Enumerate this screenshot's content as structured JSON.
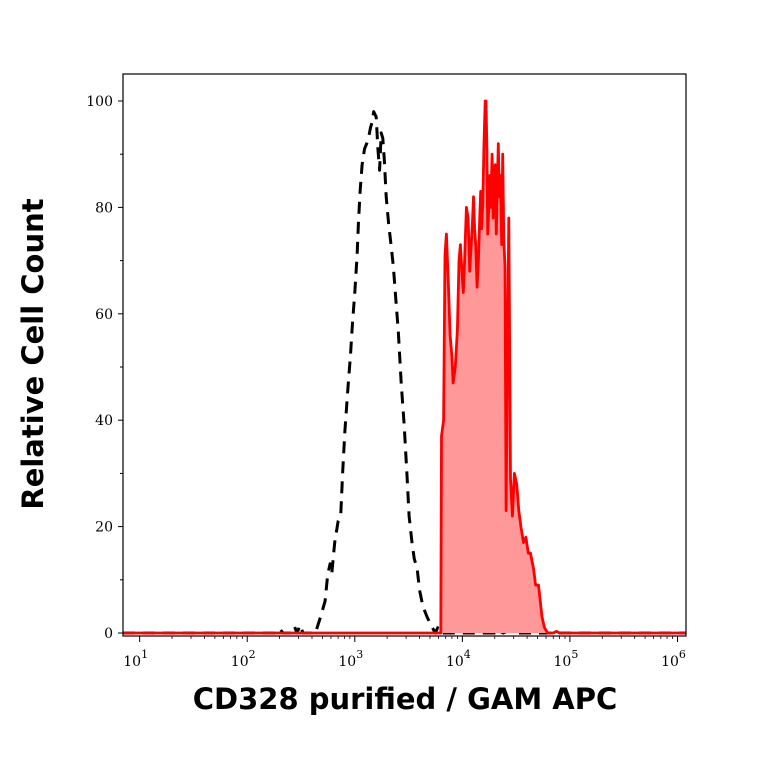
{
  "chart_data": {
    "type": "area",
    "xlabel": "CD328 purified / GAM APC",
    "ylabel": "Relative Cell Count",
    "x_scale": "log",
    "xlim": [
      7,
      1200000.0
    ],
    "ylim": [
      0,
      100
    ],
    "x_ticks": [
      {
        "value": 10,
        "base": "10",
        "exp": "1"
      },
      {
        "value": 100,
        "base": "10",
        "exp": "2"
      },
      {
        "value": 1000,
        "base": "10",
        "exp": "3"
      },
      {
        "value": 10000,
        "base": "10",
        "exp": "4"
      },
      {
        "value": 100000,
        "base": "10",
        "exp": "5"
      },
      {
        "value": 1000000,
        "base": "10",
        "exp": "6"
      }
    ],
    "y_ticks": [
      0,
      20,
      40,
      60,
      80,
      100
    ],
    "grid": false,
    "colors": {
      "stained": "#ff0000",
      "stained_fill": "#ff9999",
      "control": "#000000"
    },
    "series": [
      {
        "style": "dashed",
        "color": "#000000",
        "points": [
          [
            7,
            0
          ],
          [
            180,
            0
          ],
          [
            200,
            0.8
          ],
          [
            215,
            0
          ],
          [
            260,
            0
          ],
          [
            275,
            1.2
          ],
          [
            290,
            0
          ],
          [
            310,
            1.5
          ],
          [
            330,
            0
          ],
          [
            430,
            0
          ],
          [
            480,
            3
          ],
          [
            530,
            6
          ],
          [
            560,
            11
          ],
          [
            590,
            13
          ],
          [
            610,
            11
          ],
          [
            650,
            17
          ],
          [
            700,
            21
          ],
          [
            740,
            22
          ],
          [
            770,
            30
          ],
          [
            810,
            38
          ],
          [
            870,
            47
          ],
          [
            910,
            52
          ],
          [
            950,
            58
          ],
          [
            1000,
            64
          ],
          [
            1050,
            71
          ],
          [
            1080,
            77
          ],
          [
            1120,
            83
          ],
          [
            1170,
            88
          ],
          [
            1230,
            91
          ],
          [
            1290,
            92
          ],
          [
            1340,
            93
          ],
          [
            1400,
            95
          ],
          [
            1450,
            96
          ],
          [
            1500,
            98
          ],
          [
            1580,
            97
          ],
          [
            1640,
            91
          ],
          [
            1700,
            87
          ],
          [
            1760,
            94
          ],
          [
            1820,
            93
          ],
          [
            1880,
            89
          ],
          [
            1960,
            82
          ],
          [
            2060,
            77
          ],
          [
            2170,
            73
          ],
          [
            2280,
            69
          ],
          [
            2400,
            63
          ],
          [
            2530,
            57
          ],
          [
            2700,
            47
          ],
          [
            2880,
            39
          ],
          [
            3050,
            30
          ],
          [
            3200,
            22
          ],
          [
            3400,
            17
          ],
          [
            3570,
            14
          ],
          [
            3800,
            12
          ],
          [
            4000,
            8
          ],
          [
            4300,
            5
          ],
          [
            4700,
            3
          ],
          [
            5100,
            1.5
          ],
          [
            5600,
            0
          ],
          [
            5900,
            1
          ],
          [
            6200,
            0
          ],
          [
            9000,
            0
          ],
          [
            15000,
            0
          ],
          [
            20000,
            0
          ],
          [
            21000,
            0.6
          ],
          [
            24000,
            0
          ],
          [
            27000,
            0.5
          ],
          [
            30000,
            0
          ],
          [
            34000,
            0
          ],
          [
            50000,
            0
          ],
          [
            1200000,
            0
          ]
        ]
      },
      {
        "style": "solid_filled",
        "color": "#ff0000",
        "fill": "#ff9999",
        "points": [
          [
            7,
            0
          ],
          [
            6300,
            0
          ],
          [
            6400,
            37
          ],
          [
            6700,
            40
          ],
          [
            6900,
            71
          ],
          [
            7100,
            75
          ],
          [
            7400,
            66
          ],
          [
            7700,
            56
          ],
          [
            8000,
            52
          ],
          [
            8200,
            47
          ],
          [
            8600,
            50
          ],
          [
            9000,
            57
          ],
          [
            9300,
            70
          ],
          [
            9600,
            73
          ],
          [
            9900,
            68
          ],
          [
            10200,
            64
          ],
          [
            10500,
            70
          ],
          [
            10900,
            80
          ],
          [
            11300,
            78
          ],
          [
            11700,
            68
          ],
          [
            12000,
            72
          ],
          [
            12400,
            77
          ],
          [
            12700,
            82
          ],
          [
            13000,
            76
          ],
          [
            13300,
            73
          ],
          [
            13700,
            65
          ],
          [
            14100,
            70
          ],
          [
            14500,
            78
          ],
          [
            14800,
            83
          ],
          [
            15100,
            76
          ],
          [
            15500,
            81
          ],
          [
            15900,
            92
          ],
          [
            16300,
            100
          ],
          [
            16600,
            100
          ],
          [
            16900,
            91
          ],
          [
            17200,
            75
          ],
          [
            17600,
            80
          ],
          [
            18000,
            86
          ],
          [
            18400,
            80
          ],
          [
            18900,
            90
          ],
          [
            19300,
            78
          ],
          [
            19700,
            84
          ],
          [
            20200,
            88
          ],
          [
            20700,
            75
          ],
          [
            21100,
            83
          ],
          [
            21600,
            92
          ],
          [
            22100,
            82
          ],
          [
            22600,
            86
          ],
          [
            23200,
            73
          ],
          [
            23700,
            90
          ],
          [
            24300,
            74
          ],
          [
            24900,
            69
          ],
          [
            25500,
            23
          ],
          [
            26200,
            50
          ],
          [
            27000,
            78
          ],
          [
            28000,
            29
          ],
          [
            29200,
            22
          ],
          [
            30500,
            30
          ],
          [
            32000,
            28
          ],
          [
            33500,
            23
          ],
          [
            35000,
            20
          ],
          [
            37000,
            17
          ],
          [
            39000,
            18
          ],
          [
            41000,
            15
          ],
          [
            43000,
            15
          ],
          [
            46000,
            12
          ],
          [
            48000,
            9
          ],
          [
            51000,
            9
          ],
          [
            55000,
            3
          ],
          [
            58000,
            1
          ],
          [
            62000,
            0
          ],
          [
            70000,
            0
          ],
          [
            75000,
            0.3
          ],
          [
            80000,
            0
          ],
          [
            1200000,
            0
          ]
        ]
      }
    ]
  }
}
